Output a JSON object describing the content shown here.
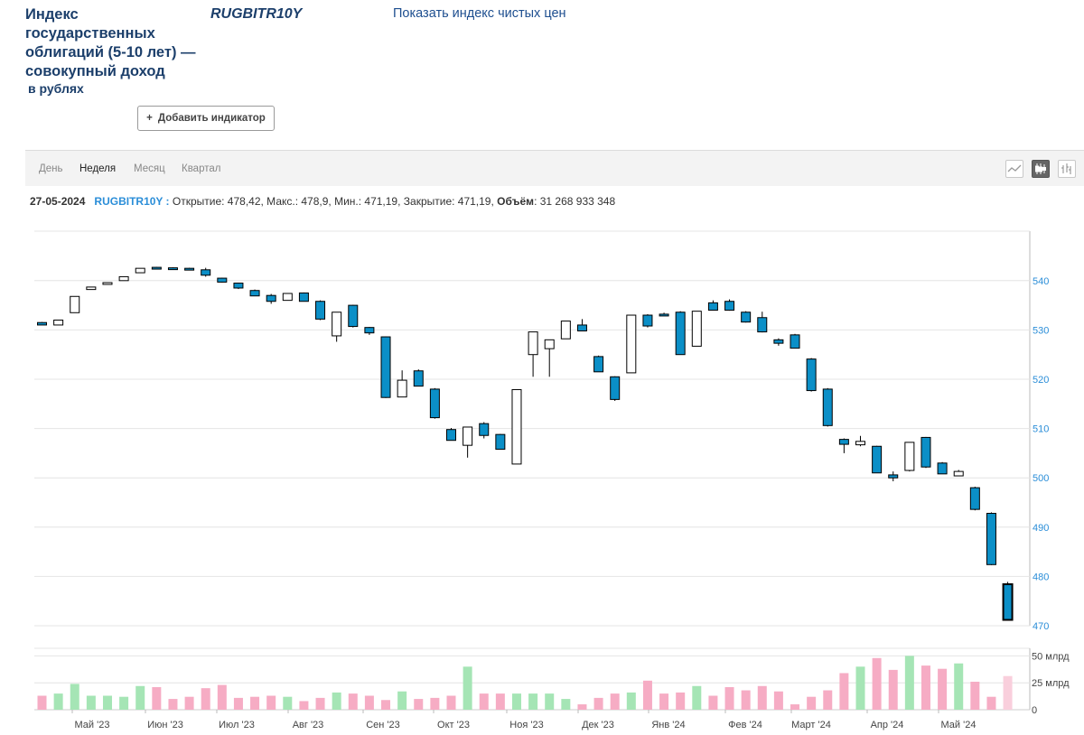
{
  "header": {
    "title": "Индекс государственных облигаций (5-10 лет) — совокупный доход",
    "subtitle": "в рублях",
    "ticker": "RUGBITR10Y",
    "clean_price_link": "Показать индекс чистых цен",
    "add_indicator": "Добавить индикатор"
  },
  "toolbar": {
    "tabs": [
      "День",
      "Неделя",
      "Месяц",
      "Квартал"
    ],
    "active_tab": "Неделя",
    "chart_types": [
      "line-chart-icon",
      "candlestick-chart-icon",
      "ohlc-bars-icon"
    ],
    "active_chart_type": "candlestick-chart-icon"
  },
  "info": {
    "date": "27-05-2024",
    "symbol": "RUGBITR10Y :",
    "text": "Открытие: 478,42, Макс.: 478,9, Мин.: 471,19, Закрытие: 471,19,",
    "volume_label": "Объём",
    "volume_value": ": 31 268 933 348"
  },
  "colors": {
    "bear": "#0b8fc7",
    "bull": "#ffffff",
    "vol_green": "#a5e5b5",
    "vol_pink": "#f6acc4",
    "vol_last": "#f9cfdc",
    "axis_text": "#2b8ed8",
    "grid": "#e4e4e4"
  },
  "chart_data": {
    "type": "candlestick",
    "interval": "week",
    "price_axis": {
      "ticks": [
        470,
        480,
        490,
        500,
        510,
        520,
        530,
        540
      ],
      "range": [
        468,
        548
      ]
    },
    "volume_axis": {
      "tick_labels": [
        "50 млрд",
        "25 млрд",
        "0"
      ],
      "ticks": [
        50,
        25,
        0
      ],
      "unit": "млрд",
      "range": [
        0,
        52
      ]
    },
    "month_labels": [
      "Май '23",
      "Июн '23",
      "Июл '23",
      "Авг '23",
      "Сен '23",
      "Окт '23",
      "Ноя '23",
      "Дек '23",
      "Янв '24",
      "Фев '24",
      "Март '24",
      "Апр '24",
      "Май '24"
    ],
    "candles": [
      {
        "o": 531.5,
        "h": 531.6,
        "l": 531.0,
        "c": 531.0,
        "v": 13
      },
      {
        "o": 531.0,
        "h": 532.0,
        "l": 531.0,
        "c": 532.0,
        "v": 15
      },
      {
        "o": 533.5,
        "h": 536.8,
        "l": 533.5,
        "c": 536.8,
        "v": 24
      },
      {
        "o": 538.2,
        "h": 538.7,
        "l": 538.2,
        "c": 538.7,
        "v": 13
      },
      {
        "o": 539.4,
        "h": 539.6,
        "l": 539.4,
        "c": 539.6,
        "v": 13
      },
      {
        "o": 540.0,
        "h": 540.8,
        "l": 540.0,
        "c": 540.8,
        "v": 12
      },
      {
        "o": 541.6,
        "h": 542.5,
        "l": 541.6,
        "c": 542.5,
        "v": 22
      },
      {
        "o": 542.7,
        "h": 542.8,
        "l": 542.4,
        "c": 542.4,
        "v": 21
      },
      {
        "o": 542.6,
        "h": 542.7,
        "l": 542.4,
        "c": 542.4,
        "v": 10
      },
      {
        "o": 542.5,
        "h": 542.6,
        "l": 542.2,
        "c": 542.2,
        "v": 12
      },
      {
        "o": 542.2,
        "h": 542.6,
        "l": 540.8,
        "c": 541.1,
        "v": 20
      },
      {
        "o": 540.5,
        "h": 540.6,
        "l": 539.6,
        "c": 539.7,
        "v": 23
      },
      {
        "o": 539.5,
        "h": 539.6,
        "l": 538.3,
        "c": 538.5,
        "v": 11
      },
      {
        "o": 538.0,
        "h": 538.2,
        "l": 536.9,
        "c": 536.9,
        "v": 12
      },
      {
        "o": 537.0,
        "h": 537.3,
        "l": 535.3,
        "c": 535.8,
        "v": 13
      },
      {
        "o": 536.0,
        "h": 537.4,
        "l": 536.0,
        "c": 537.4,
        "v": 12
      },
      {
        "o": 537.5,
        "h": 537.6,
        "l": 535.8,
        "c": 535.8,
        "v": 8
      },
      {
        "o": 535.8,
        "h": 536.0,
        "l": 532.0,
        "c": 532.2,
        "v": 11
      },
      {
        "o": 528.8,
        "h": 533.6,
        "l": 527.6,
        "c": 533.6,
        "v": 16
      },
      {
        "o": 535.0,
        "h": 535.1,
        "l": 530.5,
        "c": 530.7,
        "v": 15
      },
      {
        "o": 530.5,
        "h": 530.6,
        "l": 529.0,
        "c": 529.4,
        "v": 13
      },
      {
        "o": 528.6,
        "h": 528.7,
        "l": 516.2,
        "c": 516.3,
        "v": 9
      },
      {
        "o": 516.4,
        "h": 521.8,
        "l": 516.4,
        "c": 519.8,
        "v": 17
      },
      {
        "o": 521.7,
        "h": 522.0,
        "l": 518.6,
        "c": 518.6,
        "v": 10
      },
      {
        "o": 518.0,
        "h": 518.2,
        "l": 512.0,
        "c": 512.2,
        "v": 11
      },
      {
        "o": 509.8,
        "h": 510.1,
        "l": 507.6,
        "c": 507.6,
        "v": 13
      },
      {
        "o": 506.6,
        "h": 510.3,
        "l": 504.1,
        "c": 510.3,
        "v": 40
      },
      {
        "o": 511.0,
        "h": 511.3,
        "l": 508.0,
        "c": 508.6,
        "v": 15
      },
      {
        "o": 508.8,
        "h": 508.9,
        "l": 505.8,
        "c": 505.8,
        "v": 15
      },
      {
        "o": 502.8,
        "h": 517.9,
        "l": 502.8,
        "c": 517.9,
        "v": 15
      },
      {
        "o": 525.0,
        "h": 529.6,
        "l": 520.5,
        "c": 529.6,
        "v": 15
      },
      {
        "o": 526.2,
        "h": 528.0,
        "l": 520.5,
        "c": 528.0,
        "v": 15
      },
      {
        "o": 528.2,
        "h": 531.8,
        "l": 528.2,
        "c": 531.8,
        "v": 10
      },
      {
        "o": 531.0,
        "h": 532.2,
        "l": 529.8,
        "c": 529.8,
        "v": 5
      },
      {
        "o": 524.6,
        "h": 524.8,
        "l": 521.5,
        "c": 521.5,
        "v": 11
      },
      {
        "o": 520.5,
        "h": 520.6,
        "l": 515.6,
        "c": 515.9,
        "v": 15
      },
      {
        "o": 521.3,
        "h": 533.0,
        "l": 521.3,
        "c": 533.0,
        "v": 16
      },
      {
        "o": 533.0,
        "h": 533.2,
        "l": 530.5,
        "c": 530.8,
        "v": 27
      },
      {
        "o": 533.2,
        "h": 533.5,
        "l": 532.9,
        "c": 532.9,
        "v": 15
      },
      {
        "o": 533.6,
        "h": 533.8,
        "l": 525.0,
        "c": 525.0,
        "v": 16
      },
      {
        "o": 526.7,
        "h": 533.8,
        "l": 526.7,
        "c": 533.8,
        "v": 22
      },
      {
        "o": 535.5,
        "h": 536.0,
        "l": 534.0,
        "c": 534.0,
        "v": 13
      },
      {
        "o": 535.8,
        "h": 536.2,
        "l": 533.9,
        "c": 534.0,
        "v": 21
      },
      {
        "o": 533.6,
        "h": 533.8,
        "l": 531.5,
        "c": 531.6,
        "v": 18
      },
      {
        "o": 532.5,
        "h": 533.7,
        "l": 529.5,
        "c": 529.6,
        "v": 22
      },
      {
        "o": 528.0,
        "h": 528.3,
        "l": 526.8,
        "c": 527.3,
        "v": 17
      },
      {
        "o": 529.0,
        "h": 529.2,
        "l": 526.3,
        "c": 526.3,
        "v": 5
      },
      {
        "o": 524.1,
        "h": 524.3,
        "l": 517.5,
        "c": 517.7,
        "v": 12
      },
      {
        "o": 518.0,
        "h": 518.2,
        "l": 510.4,
        "c": 510.6,
        "v": 18
      },
      {
        "o": 507.8,
        "h": 508.0,
        "l": 505.0,
        "c": 506.8,
        "v": 34
      },
      {
        "o": 506.7,
        "h": 508.5,
        "l": 506.4,
        "c": 507.4,
        "v": 40
      },
      {
        "o": 506.4,
        "h": 506.5,
        "l": 501.0,
        "c": 501.0,
        "v": 48
      },
      {
        "o": 500.6,
        "h": 501.3,
        "l": 499.3,
        "c": 500.0,
        "v": 37
      },
      {
        "o": 501.5,
        "h": 507.2,
        "l": 501.3,
        "c": 507.2,
        "v": 50
      },
      {
        "o": 508.2,
        "h": 508.3,
        "l": 502.0,
        "c": 502.2,
        "v": 41
      },
      {
        "o": 503.0,
        "h": 503.2,
        "l": 500.8,
        "c": 500.8,
        "v": 38
      },
      {
        "o": 500.4,
        "h": 501.6,
        "l": 500.4,
        "c": 501.3,
        "v": 43
      },
      {
        "o": 498.0,
        "h": 498.2,
        "l": 493.4,
        "c": 493.6,
        "v": 26
      },
      {
        "o": 492.8,
        "h": 493.0,
        "l": 482.3,
        "c": 482.4,
        "v": 12
      },
      {
        "o": 478.42,
        "h": 478.9,
        "l": 471.19,
        "c": 471.19,
        "v": 31.27
      }
    ]
  }
}
